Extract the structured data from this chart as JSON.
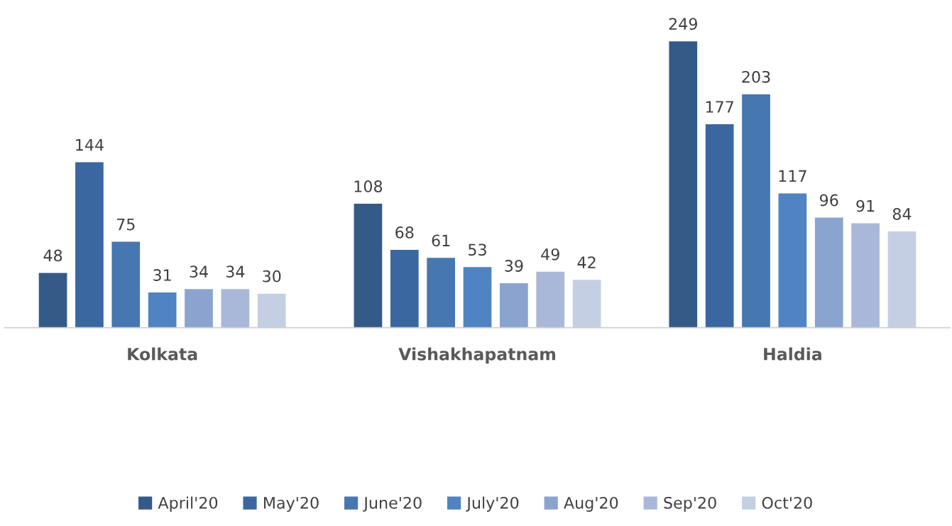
{
  "chart_data": {
    "type": "bar",
    "categories": [
      "Kolkata",
      "Vishakhapatnam",
      "Haldia"
    ],
    "series": [
      {
        "name": "April'20",
        "color": "#345a88",
        "values": [
          48,
          108,
          249
        ]
      },
      {
        "name": "May'20",
        "color": "#3a679f",
        "values": [
          144,
          68,
          177
        ]
      },
      {
        "name": "June'20",
        "color": "#4677b0",
        "values": [
          75,
          61,
          203
        ]
      },
      {
        "name": "July'20",
        "color": "#4f83c2",
        "values": [
          31,
          53,
          117
        ]
      },
      {
        "name": "Aug'20",
        "color": "#8aa4cf",
        "values": [
          34,
          39,
          96
        ]
      },
      {
        "name": "Sep'20",
        "color": "#a9b8d9",
        "values": [
          34,
          49,
          91
        ]
      },
      {
        "name": "Oct'20",
        "color": "#c5cfe3",
        "values": [
          30,
          42,
          84
        ]
      }
    ],
    "data_labels": true,
    "grid": false,
    "legend": "bottom",
    "tick_labels": "x"
  }
}
